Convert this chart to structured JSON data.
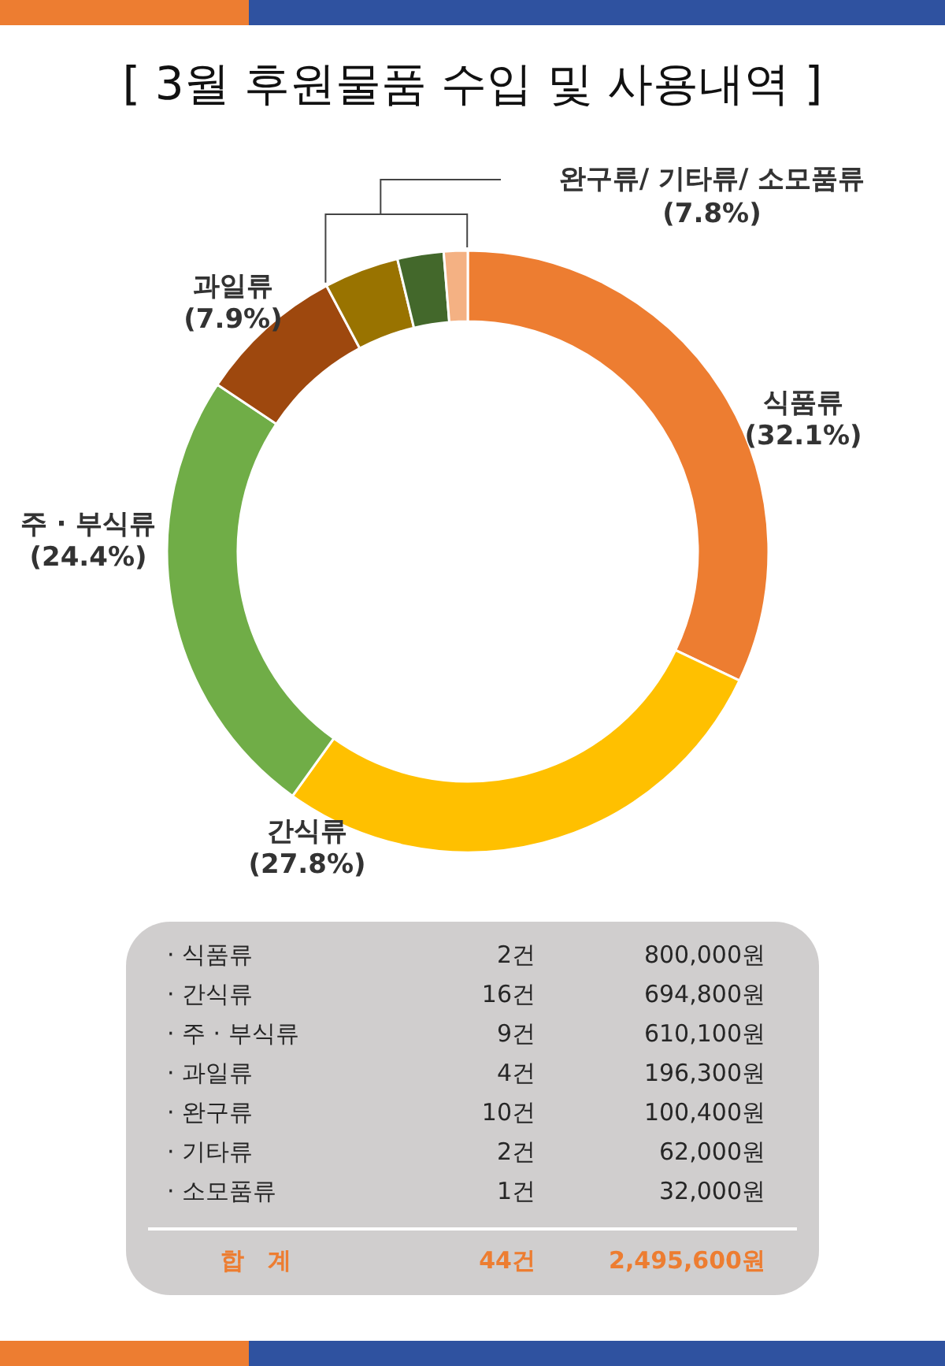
{
  "chart_data": [
    {
      "type": "donut",
      "title": "[ 3월 후원물품 수입 및 사용내역 ]",
      "categories": [
        "식품류",
        "간식류",
        "주 · 부식류",
        "과일류",
        null,
        null,
        null
      ],
      "values": [
        32.06,
        27.84,
        24.45,
        7.87,
        4.02,
        2.48,
        1.28
      ],
      "colors": [
        "#ed7d31",
        "#ffc000",
        "#70ad47",
        "#9e480e",
        "#997300",
        "#43682b",
        "#f4b183"
      ],
      "value_labels": [
        "(32.1%)",
        "(27.8%)",
        "(24.4%)",
        "(7.9%)",
        null,
        null,
        null
      ],
      "annotations": [
        "완구류/ 기타류/ 소모품류 (7.8%)"
      ]
    },
    {
      "type": "other",
      "categories": [
        "· 식품류",
        "· 간식류",
        "· 주 · 부식류",
        "· 과일류",
        "· 완구류",
        "· 기타류",
        "· 소모품류",
        "합　계"
      ],
      "series": [
        {
          "values": [
            2,
            16,
            9,
            4,
            10,
            2,
            1,
            44
          ],
          "value_labels": [
            "2건",
            "16건",
            "9건",
            "4건",
            "10건",
            "2건",
            "1건",
            "44건"
          ]
        },
        {
          "values": [
            800000,
            694800,
            610100,
            196300,
            100400,
            62000,
            32000,
            2495600
          ],
          "value_labels": [
            "800,000원",
            "694,800원",
            "610,100원",
            "196,300원",
            "100,400원",
            "62,000원",
            "32,000원",
            "2,495,600원"
          ]
        }
      ]
    }
  ]
}
